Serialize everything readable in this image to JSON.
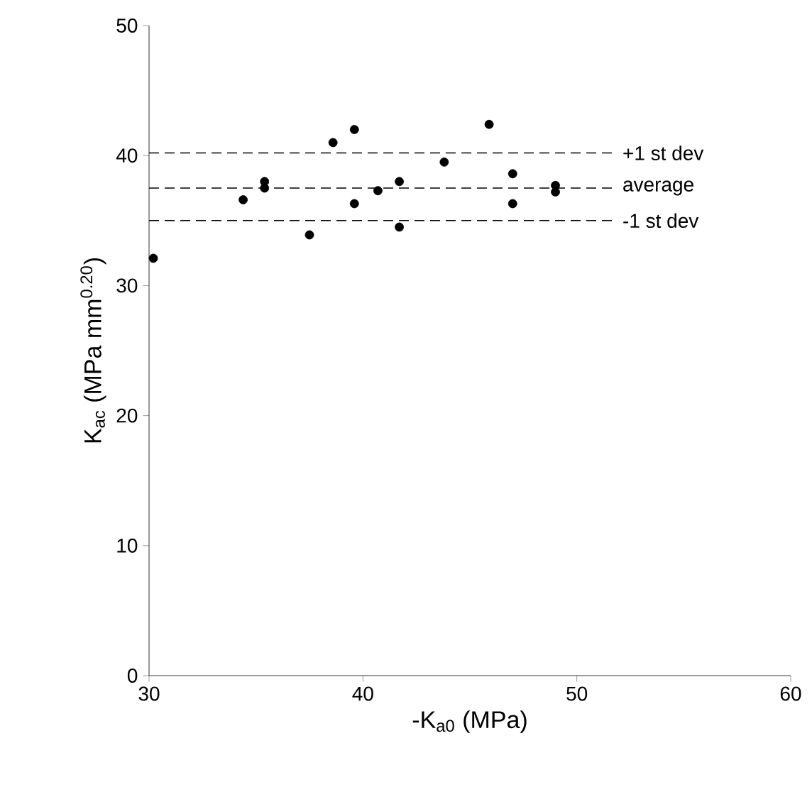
{
  "chart_data": {
    "type": "scatter",
    "xlabel": "-K$_{a0}$ (MPa)",
    "ylabel": "K$_{ac}$ (MPa mm$^{0.20}$)",
    "x": [
      30.2,
      34.4,
      35.4,
      35.4,
      37.5,
      38.6,
      39.6,
      39.6,
      40.7,
      41.7,
      41.7,
      43.8,
      45.9,
      47.0,
      47.0,
      49.0,
      49.0
    ],
    "values": [
      32.1,
      36.6,
      38.0,
      37.5,
      33.9,
      41.0,
      42.0,
      36.3,
      37.3,
      38.0,
      34.5,
      39.5,
      42.4,
      38.6,
      36.3,
      37.7,
      37.2
    ],
    "color": "#000000",
    "marker": "circle",
    "xlim": [
      30,
      60
    ],
    "ylim": [
      0,
      50
    ],
    "xticks": [
      30,
      40,
      50,
      60
    ],
    "yticks": [
      0,
      10,
      20,
      30,
      40,
      50
    ],
    "ref_lines": [
      {
        "axis": "y",
        "value": 40.2,
        "label": "+1 st dev",
        "line_style": "dashed"
      },
      {
        "axis": "y",
        "value": 37.5,
        "label": "average",
        "line_style": "dashed"
      },
      {
        "axis": "y",
        "value": 35.0,
        "label": "-1 st dev",
        "line_style": "dashed"
      }
    ],
    "grid": false
  }
}
